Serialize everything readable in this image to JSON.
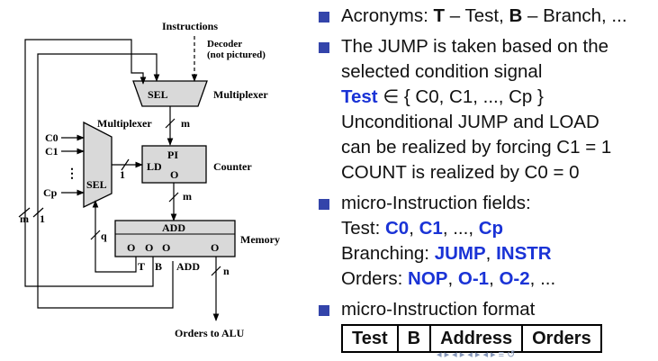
{
  "diagram": {
    "instructions": "Instructions",
    "decoder_line1": "Decoder",
    "decoder_line2": "(not pictured)",
    "sel_top": "SEL",
    "multiplexer_top": "Multiplexer",
    "m_top": "m",
    "multiplexer_left": "Multiplexer",
    "inputs": [
      "C0",
      "C1",
      "⋮",
      "Cp"
    ],
    "sel_left": "SEL",
    "one_mid": "1",
    "pi": "PI",
    "ld": "LD",
    "o_counter": "O",
    "counter": "Counter",
    "m_mid": "m",
    "add_top": "ADD",
    "memory": "Memory",
    "outputs": [
      "O",
      "O",
      "O",
      "O"
    ],
    "q": "q",
    "t": "T",
    "b": "B",
    "add_bottom": "ADD",
    "n": "n",
    "m_left": "m",
    "one_left": "1",
    "orders_to_alu": "Orders to ALU"
  },
  "bullets": {
    "b1": {
      "text1": "Acronyms: ",
      "t": "T",
      "text2": " – Test, ",
      "b": "B",
      "text3": " – Branch, ..."
    },
    "b2": {
      "l1": "The JUMP is taken based on the",
      "l2": "selected condition signal",
      "l3_test": "Test",
      "l3_rest": " ∈ { C0, C1, ..., Cp }",
      "l4": "Unconditional JUMP and LOAD",
      "l5": "can be realized by forcing C1 = 1",
      "l6": "COUNT is realized by C0 = 0"
    },
    "b3": {
      "l1": "micro-Instruction fields:",
      "l2_prefix": "Test: ",
      "c0": "C0",
      "c1": "C1",
      "dots": ", ..., ",
      "cp": "Cp",
      "l3_prefix": "Branching: ",
      "jump": "JUMP",
      "instr": "INSTR",
      "l4_prefix": "Orders: ",
      "nop": "NOP",
      "o1": "O-1",
      "o2": "O-2",
      "l4_suffix": ", ..."
    },
    "b4": {
      "l1": "micro-Instruction format"
    }
  },
  "format_table": [
    "Test",
    "B",
    "Address",
    "Orders"
  ],
  "nav_symbols": "◂ ▸ ◂ ▸ ◂ ▸ ◂ ▸   ≡   ↺"
}
